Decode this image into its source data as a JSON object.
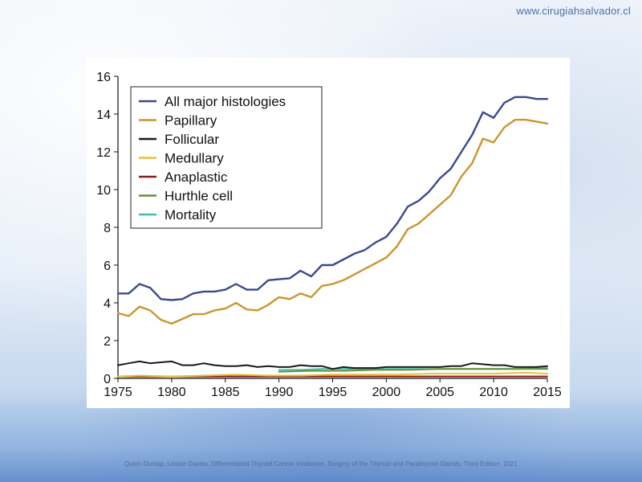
{
  "site_url": "www.cirugiahsalvador.cl",
  "caption": "Quinn Dunlap, Louise Davies. Differentiated Thyroid Cancer Incidence. Surgery of the Thyroid and Parathyroid Glands, Third Edition. 2021",
  "chart_data": {
    "type": "line",
    "title": "",
    "xlabel": "",
    "ylabel": "",
    "xlim": [
      1975,
      2015
    ],
    "ylim": [
      0,
      16
    ],
    "xticks": [
      1975,
      1980,
      1985,
      1990,
      1995,
      2000,
      2005,
      2010,
      2015
    ],
    "yticks": [
      0,
      2,
      4,
      6,
      8,
      10,
      12,
      14,
      16
    ],
    "grid": false,
    "legend_position": "top-left",
    "series": [
      {
        "name": "All major histologies",
        "color": "#3b4a8c",
        "x": [
          1975,
          1976,
          1977,
          1978,
          1979,
          1980,
          1981,
          1982,
          1983,
          1984,
          1985,
          1986,
          1987,
          1988,
          1989,
          1990,
          1991,
          1992,
          1993,
          1994,
          1995,
          1996,
          1997,
          1998,
          1999,
          2000,
          2001,
          2002,
          2003,
          2004,
          2005,
          2006,
          2007,
          2008,
          2009,
          2010,
          2011,
          2012,
          2013,
          2014,
          2015
        ],
        "values": [
          4.5,
          4.5,
          5.0,
          4.8,
          4.2,
          4.15,
          4.2,
          4.5,
          4.6,
          4.6,
          4.7,
          5.0,
          4.7,
          4.7,
          5.2,
          5.25,
          5.3,
          5.7,
          5.4,
          6.0,
          6.0,
          6.3,
          6.6,
          6.8,
          7.2,
          7.5,
          8.2,
          9.1,
          9.4,
          9.9,
          10.6,
          11.1,
          12.0,
          12.9,
          14.1,
          13.8,
          14.6,
          14.9,
          14.9,
          14.8,
          14.8
        ]
      },
      {
        "name": "Papillary",
        "color": "#c9962e",
        "x": [
          1975,
          1976,
          1977,
          1978,
          1979,
          1980,
          1981,
          1982,
          1983,
          1984,
          1985,
          1986,
          1987,
          1988,
          1989,
          1990,
          1991,
          1992,
          1993,
          1994,
          1995,
          1996,
          1997,
          1998,
          1999,
          2000,
          2001,
          2002,
          2003,
          2004,
          2005,
          2006,
          2007,
          2008,
          2009,
          2010,
          2011,
          2012,
          2013,
          2014,
          2015
        ],
        "values": [
          3.45,
          3.3,
          3.8,
          3.6,
          3.1,
          2.9,
          3.15,
          3.4,
          3.4,
          3.6,
          3.7,
          4.0,
          3.65,
          3.6,
          3.9,
          4.3,
          4.2,
          4.5,
          4.3,
          4.9,
          5.0,
          5.2,
          5.5,
          5.8,
          6.1,
          6.4,
          7.0,
          7.9,
          8.2,
          8.7,
          9.2,
          9.7,
          10.7,
          11.4,
          12.7,
          12.5,
          13.3,
          13.7,
          13.7,
          13.6,
          13.5
        ]
      },
      {
        "name": "Follicular",
        "color": "#1a1a1a",
        "x": [
          1975,
          1976,
          1977,
          1978,
          1979,
          1980,
          1981,
          1982,
          1983,
          1984,
          1985,
          1986,
          1987,
          1988,
          1989,
          1990,
          1991,
          1992,
          1993,
          1994,
          1995,
          1996,
          1997,
          1998,
          1999,
          2000,
          2001,
          2002,
          2003,
          2004,
          2005,
          2006,
          2007,
          2008,
          2009,
          2010,
          2011,
          2012,
          2013,
          2014,
          2015
        ],
        "values": [
          0.7,
          0.8,
          0.9,
          0.8,
          0.85,
          0.9,
          0.7,
          0.7,
          0.8,
          0.7,
          0.65,
          0.65,
          0.7,
          0.6,
          0.65,
          0.6,
          0.6,
          0.7,
          0.65,
          0.65,
          0.5,
          0.6,
          0.55,
          0.55,
          0.55,
          0.6,
          0.6,
          0.6,
          0.6,
          0.6,
          0.6,
          0.65,
          0.65,
          0.8,
          0.75,
          0.7,
          0.7,
          0.6,
          0.6,
          0.6,
          0.65
        ]
      },
      {
        "name": "Medullary",
        "color": "#e6c23a",
        "x": [
          1975,
          1977,
          1980,
          1983,
          1986,
          1989,
          1992,
          1995,
          1998,
          2001,
          2004,
          2007,
          2010,
          2013,
          2015
        ],
        "values": [
          0.1,
          0.15,
          0.1,
          0.15,
          0.2,
          0.15,
          0.15,
          0.2,
          0.2,
          0.2,
          0.25,
          0.25,
          0.25,
          0.3,
          0.25
        ]
      },
      {
        "name": "Anaplastic",
        "color": "#8b1a1a",
        "x": [
          1975,
          1980,
          1985,
          1990,
          1995,
          2000,
          2005,
          2010,
          2015
        ],
        "values": [
          0.1,
          0.1,
          0.1,
          0.1,
          0.1,
          0.1,
          0.1,
          0.1,
          0.1
        ]
      },
      {
        "name": "Hurthle cell",
        "color": "#6b8e3a",
        "x": [
          1990,
          1993,
          1996,
          1999,
          2002,
          2005,
          2008,
          2011,
          2015
        ],
        "values": [
          0.35,
          0.4,
          0.4,
          0.45,
          0.45,
          0.5,
          0.5,
          0.5,
          0.5
        ]
      },
      {
        "name": "Mortality",
        "color": "#3fbfb0",
        "x": [
          1990,
          1992,
          1994,
          1996,
          1998,
          2000,
          2002,
          2004,
          2006,
          2008,
          2010,
          2012,
          2015
        ],
        "values": [
          0.45,
          0.45,
          0.5,
          0.5,
          0.5,
          0.5,
          0.5,
          0.5,
          0.5,
          0.5,
          0.5,
          0.5,
          0.55
        ]
      }
    ]
  }
}
